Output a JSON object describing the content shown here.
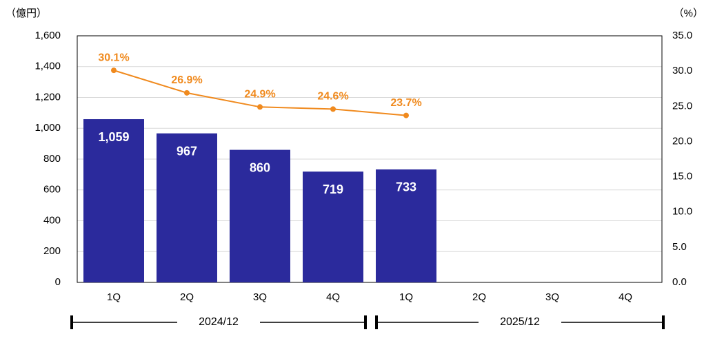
{
  "chart_data": {
    "type": "bar",
    "y_unit": "（億円）",
    "y2_unit": "（%）",
    "categories": [
      "1Q",
      "2Q",
      "3Q",
      "4Q",
      "1Q",
      "2Q",
      "3Q",
      "4Q"
    ],
    "groups": [
      "2024/12",
      "2025/12"
    ],
    "series": [
      {
        "type": "bar",
        "color": "#2b2a9c",
        "values": [
          1059,
          967,
          860,
          719,
          733,
          null,
          null,
          null
        ],
        "value_labels": [
          "1,059",
          "967",
          "860",
          "719",
          "733",
          null,
          null,
          null
        ]
      },
      {
        "type": "line",
        "axis": "y2",
        "color": "#f08a1e",
        "values": [
          30.1,
          26.9,
          24.9,
          24.6,
          23.7,
          null,
          null,
          null
        ],
        "value_labels": [
          "30.1%",
          "26.9%",
          "24.9%",
          "24.6%",
          "23.7%",
          null,
          null,
          null
        ]
      }
    ],
    "ylim": [
      0,
      1600
    ],
    "yticks": [
      0,
      200,
      400,
      600,
      800,
      {
        "value": 1000,
        "label": "1,000"
      },
      {
        "value": 1200,
        "label": "1,200"
      },
      {
        "value": 1400,
        "label": "1,400"
      },
      {
        "value": 1600,
        "label": "1,600"
      }
    ],
    "y2lim": [
      0,
      35
    ],
    "y2ticks": [
      {
        "value": 0,
        "label": "0.0"
      },
      {
        "value": 5,
        "label": "5.0"
      },
      {
        "value": 10,
        "label": "10.0"
      },
      {
        "value": 15,
        "label": "15.0"
      },
      {
        "value": 20,
        "label": "20.0"
      },
      {
        "value": 25,
        "label": "25.0"
      },
      {
        "value": 30,
        "label": "30.0"
      },
      {
        "value": 35,
        "label": "35.0"
      }
    ],
    "grid": true
  }
}
